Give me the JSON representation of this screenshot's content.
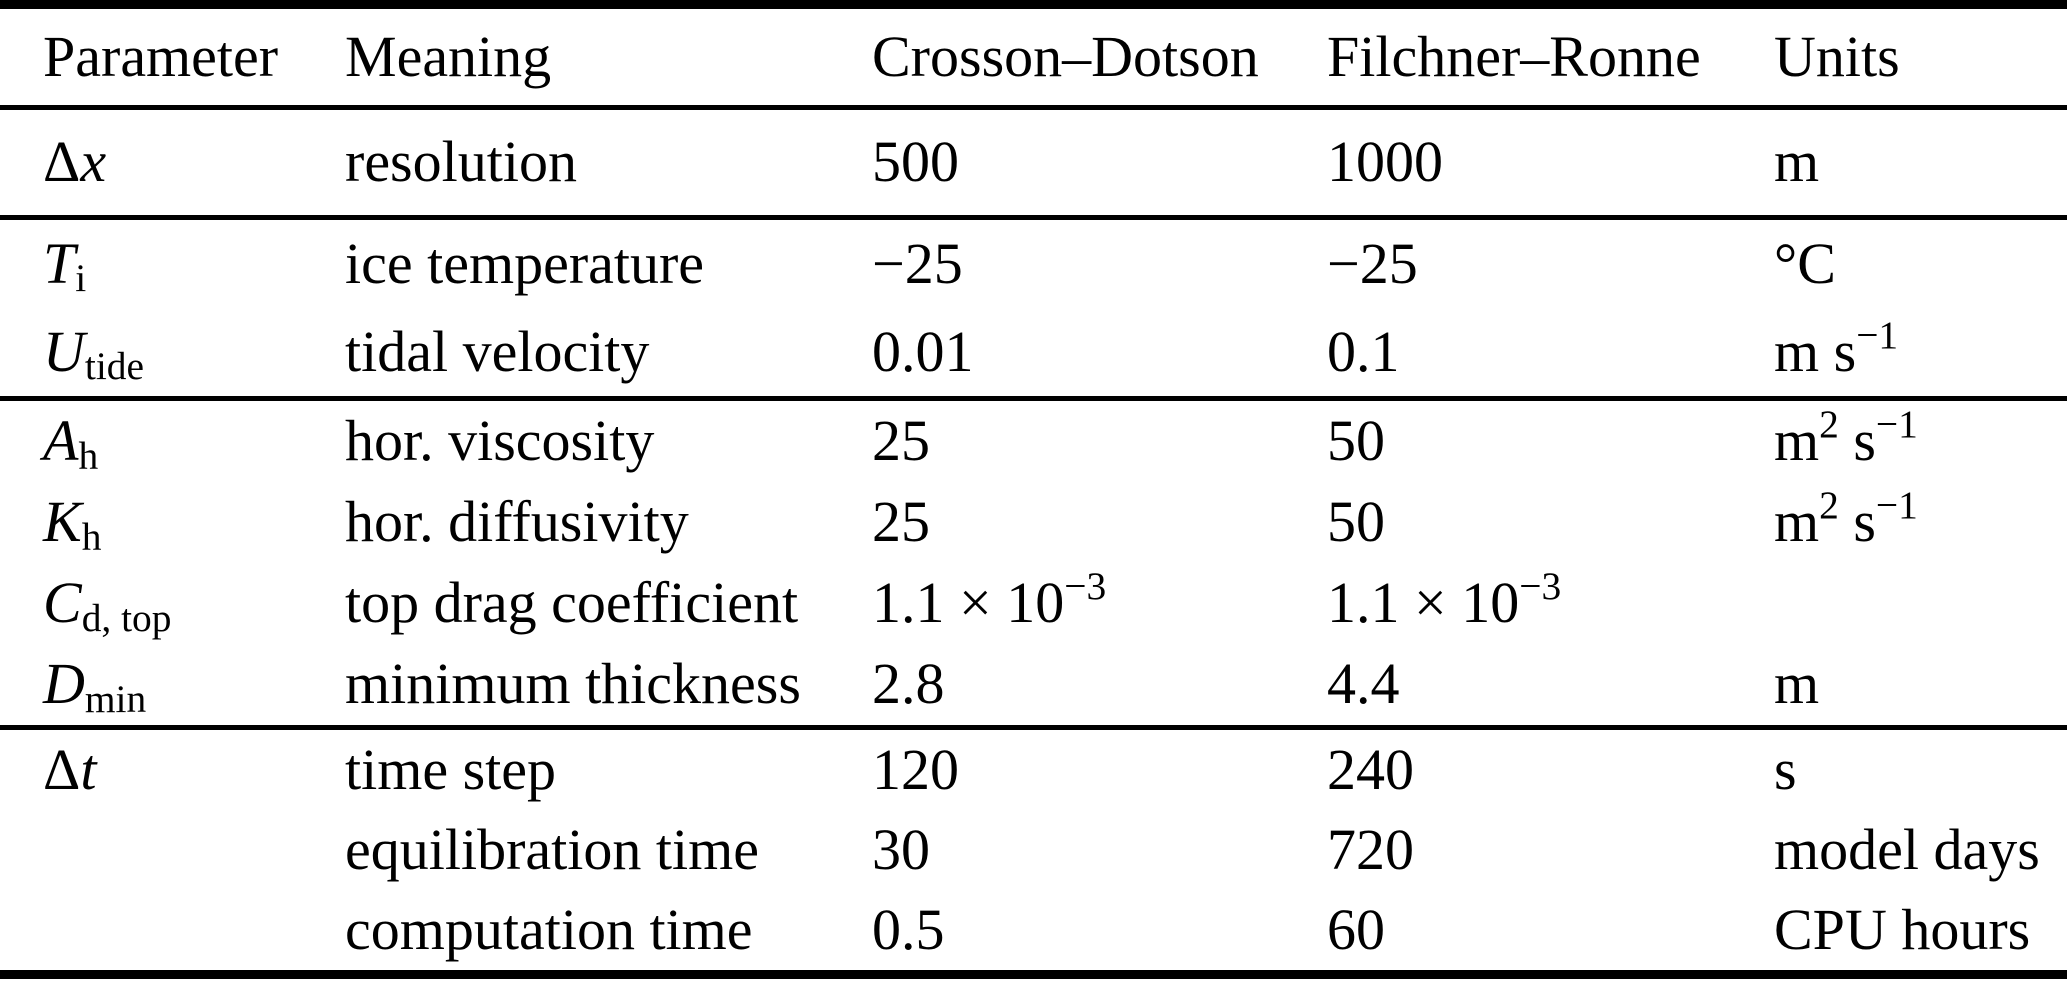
{
  "document": {
    "background_color": "#ffffff",
    "text_color": "#000000",
    "rule_color": "#000000"
  },
  "table": {
    "columns": [
      {
        "id": "param",
        "label": "Parameter"
      },
      {
        "id": "meaning",
        "label": "Meaning"
      },
      {
        "id": "crosson",
        "label": "Crosson–Dotson"
      },
      {
        "id": "filchner",
        "label": "Filchner–Ronne"
      },
      {
        "id": "units",
        "label": "Units"
      }
    ],
    "groups": [
      {
        "rows": [
          {
            "param": [
              {
                "t": "Δ"
              },
              {
                "t": "x",
                "i": true
              }
            ],
            "meaning": "resolution",
            "crosson": "500",
            "filchner": "1000",
            "units": "m"
          }
        ]
      },
      {
        "rows": [
          {
            "param": [
              {
                "t": "T",
                "i": true
              },
              {
                "t": "i",
                "sub": true
              }
            ],
            "meaning": "ice temperature",
            "crosson": "−25",
            "filchner": "−25",
            "units": "°C"
          },
          {
            "param": [
              {
                "t": "U",
                "i": true
              },
              {
                "t": "tide",
                "sub": true
              }
            ],
            "meaning": "tidal velocity",
            "crosson": "0.01",
            "filchner": "0.1",
            "units": [
              {
                "t": "m s"
              },
              {
                "t": "−1",
                "sup": true
              }
            ]
          }
        ]
      },
      {
        "rows": [
          {
            "param": [
              {
                "t": "A",
                "i": true
              },
              {
                "t": "h",
                "sub": true
              }
            ],
            "meaning": "hor. viscosity",
            "crosson": "25",
            "filchner": "50",
            "units": [
              {
                "t": "m"
              },
              {
                "t": "2",
                "sup": true
              },
              {
                "t": " s"
              },
              {
                "t": "−1",
                "sup": true
              }
            ]
          },
          {
            "param": [
              {
                "t": "K",
                "i": true
              },
              {
                "t": "h",
                "sub": true
              }
            ],
            "meaning": "hor. diffusivity",
            "crosson": "25",
            "filchner": "50",
            "units": [
              {
                "t": "m"
              },
              {
                "t": "2",
                "sup": true
              },
              {
                "t": " s"
              },
              {
                "t": "−1",
                "sup": true
              }
            ]
          },
          {
            "param": [
              {
                "t": "C",
                "i": true
              },
              {
                "t": "d, top",
                "sub": true
              }
            ],
            "meaning": "top drag coefficient",
            "crosson": [
              {
                "t": "1.1 × 10"
              },
              {
                "t": "−3",
                "sup": true
              }
            ],
            "filchner": [
              {
                "t": "1.1 × 10"
              },
              {
                "t": "−3",
                "sup": true
              }
            ],
            "units": ""
          },
          {
            "param": [
              {
                "t": "D",
                "i": true
              },
              {
                "t": "min",
                "sub": true
              }
            ],
            "meaning": "minimum thickness",
            "crosson": "2.8",
            "filchner": "4.4",
            "units": "m"
          }
        ]
      },
      {
        "rows": [
          {
            "param": [
              {
                "t": "Δ"
              },
              {
                "t": "t",
                "i": true
              }
            ],
            "meaning": "time step",
            "crosson": "120",
            "filchner": "240",
            "units": "s"
          },
          {
            "param": "",
            "meaning": "equilibration time",
            "crosson": "30",
            "filchner": "720",
            "units": "model days"
          },
          {
            "param": "",
            "meaning": "computation time",
            "crosson": "0.5",
            "filchner": "60",
            "units": "CPU hours"
          }
        ]
      }
    ]
  }
}
